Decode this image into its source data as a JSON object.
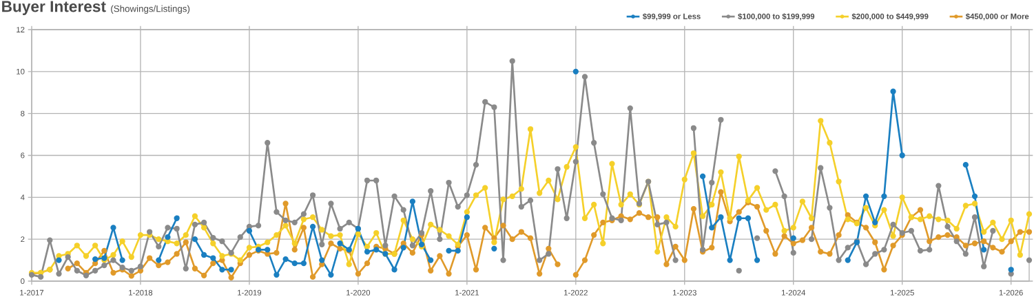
{
  "chart_data": {
    "type": "line",
    "title": "Buyer Interest",
    "subtitle": "(Showings/Listings)",
    "x": [
      "2017-01",
      "2017-02",
      "2017-03",
      "2017-04",
      "2017-05",
      "2017-06",
      "2017-07",
      "2017-08",
      "2017-09",
      "2017-10",
      "2017-11",
      "2017-12",
      "2018-01",
      "2018-02",
      "2018-03",
      "2018-04",
      "2018-05",
      "2018-06",
      "2018-07",
      "2018-08",
      "2018-09",
      "2018-10",
      "2018-11",
      "2018-12",
      "2019-01",
      "2019-02",
      "2019-03",
      "2019-04",
      "2019-05",
      "2019-06",
      "2019-07",
      "2019-08",
      "2019-09",
      "2019-10",
      "2019-11",
      "2019-12",
      "2020-01",
      "2020-02",
      "2020-03",
      "2020-04",
      "2020-05",
      "2020-06",
      "2020-07",
      "2020-08",
      "2020-09",
      "2020-10",
      "2020-11",
      "2020-12",
      "2021-01",
      "2021-02",
      "2021-03",
      "2021-04",
      "2021-05",
      "2021-06",
      "2021-07",
      "2021-08",
      "2021-09",
      "2021-10",
      "2021-11",
      "2021-12",
      "2022-01",
      "2022-02",
      "2022-03",
      "2022-04",
      "2022-05",
      "2022-06",
      "2022-07",
      "2022-08",
      "2022-09",
      "2022-10",
      "2022-11",
      "2022-12",
      "2023-01",
      "2023-02",
      "2023-03",
      "2023-04",
      "2023-05",
      "2023-06",
      "2023-07",
      "2023-08",
      "2023-09",
      "2023-10",
      "2023-11",
      "2023-12",
      "2024-01",
      "2024-02",
      "2024-03",
      "2024-04",
      "2024-05",
      "2024-06",
      "2024-07",
      "2024-08",
      "2024-09",
      "2024-10",
      "2024-11",
      "2024-12",
      "2025-01",
      "2025-02",
      "2025-03",
      "2025-04",
      "2025-05",
      "2025-06",
      "2025-07",
      "2025-08",
      "2025-09",
      "2025-10",
      "2025-11",
      "2025-12",
      "2026-01",
      "2026-02",
      "2026-03"
    ],
    "series": [
      {
        "name": "$99,999 or Less",
        "color": "#1a7fc1",
        "values": [
          null,
          null,
          null,
          1.0,
          null,
          null,
          null,
          1.05,
          1.1,
          2.55,
          1.0,
          null,
          null,
          null,
          1.0,
          2.1,
          3.0,
          null,
          2.0,
          1.25,
          1.1,
          0.55,
          0.55,
          null,
          2.4,
          1.5,
          1.5,
          0.3,
          1.05,
          0.85,
          0.85,
          2.6,
          1.0,
          0.3,
          1.8,
          1.5,
          2.5,
          1.4,
          1.5,
          1.3,
          0.55,
          1.6,
          3.8,
          1.75,
          1.0,
          null,
          1.45,
          1.45,
          3.05,
          null,
          null,
          1.55,
          null,
          null,
          null,
          null,
          null,
          null,
          null,
          null,
          10.0,
          null,
          null,
          null,
          null,
          null,
          null,
          null,
          null,
          null,
          null,
          null,
          null,
          null,
          5.0,
          2.55,
          3.05,
          1.0,
          3.0,
          3.0,
          1.0,
          null,
          null,
          null,
          2.05,
          null,
          null,
          null,
          null,
          null,
          1.0,
          1.85,
          4.05,
          2.8,
          4.05,
          9.05,
          6.0,
          null,
          null,
          null,
          null,
          null,
          null,
          5.55,
          4.05,
          1.5,
          null,
          null,
          0.55,
          null,
          null
        ]
      },
      {
        "name": "$100,000 to $199,999",
        "color": "#8a8a8a",
        "values": [
          0.3,
          0.2,
          1.95,
          0.35,
          1.15,
          0.5,
          0.27,
          0.5,
          0.75,
          1.0,
          0.65,
          0.5,
          0.7,
          2.35,
          1.65,
          2.55,
          2.5,
          0.6,
          2.7,
          2.8,
          2.07,
          1.9,
          1.35,
          2.1,
          2.6,
          2.65,
          6.6,
          3.3,
          2.9,
          2.8,
          3.2,
          4.1,
          1.75,
          3.7,
          2.5,
          2.8,
          2.5,
          4.8,
          4.8,
          1.7,
          4.05,
          3.4,
          1.7,
          2.3,
          4.3,
          2.0,
          4.7,
          3.55,
          4.1,
          5.55,
          8.55,
          8.3,
          1.0,
          10.5,
          3.55,
          3.85,
          1.0,
          1.3,
          5.35,
          3.0,
          5.7,
          9.75,
          6.6,
          4.15,
          3.0,
          2.9,
          8.25,
          3.7,
          4.75,
          2.7,
          2.8,
          1.0,
          null,
          7.3,
          1.5,
          4.7,
          7.7,
          null,
          0.5,
          null,
          2.05,
          null,
          5.25,
          4.05,
          1.35,
          null,
          2.0,
          5.4,
          3.5,
          1.0,
          1.6,
          1.9,
          0.8,
          1.3,
          1.5,
          2.7,
          2.3,
          2.4,
          1.45,
          1.5,
          4.55,
          2.6,
          1.9,
          1.3,
          3.05,
          0.7,
          2.4,
          null,
          0.35,
          null,
          1.0
        ]
      },
      {
        "name": "$200,000 to $449,999",
        "color": "#f5d02a",
        "values": [
          0.4,
          0.4,
          0.55,
          1.2,
          1.3,
          1.7,
          1.2,
          1.7,
          1.0,
          1.25,
          1.9,
          1.15,
          2.2,
          2.2,
          2.0,
          1.9,
          1.8,
          2.2,
          3.1,
          2.55,
          1.8,
          1.2,
          1.3,
          1.0,
          1.6,
          1.65,
          1.85,
          2.2,
          2.65,
          1.8,
          2.95,
          3.05,
          2.45,
          2.15,
          2.2,
          0.8,
          2.25,
          1.65,
          2.3,
          1.3,
          1.3,
          2.9,
          2.0,
          1.65,
          2.7,
          2.45,
          2.15,
          1.75,
          3.3,
          4.1,
          4.45,
          1.85,
          3.9,
          4.05,
          4.4,
          7.25,
          4.2,
          4.8,
          3.9,
          5.45,
          6.4,
          3.0,
          3.65,
          1.8,
          5.6,
          3.65,
          4.15,
          3.65,
          4.75,
          1.4,
          3.05,
          2.6,
          4.85,
          6.1,
          3.1,
          3.65,
          5.2,
          3.0,
          5.95,
          3.85,
          4.45,
          3.4,
          3.65,
          2.4,
          2.55,
          3.8,
          3.0,
          7.65,
          6.6,
          4.75,
          2.95,
          2.75,
          3.5,
          2.65,
          3.4,
          2.15,
          4.0,
          3.05,
          2.95,
          3.1,
          2.95,
          2.9,
          2.5,
          3.6,
          3.7,
          2.35,
          2.8,
          2.0,
          2.9,
          1.25,
          3.2
        ]
      },
      {
        "name": "$450,000 or More",
        "color": "#e09a2a",
        "values": [
          0.35,
          0.4,
          0.55,
          null,
          0.6,
          0.85,
          0.4,
          0.85,
          1.45,
          0.4,
          0.55,
          0.25,
          0.5,
          1.1,
          0.75,
          0.9,
          1.3,
          1.85,
          0.6,
          0.27,
          0.85,
          1.0,
          0.17,
          0.85,
          1.25,
          1.45,
          1.3,
          1.35,
          3.7,
          1.5,
          2.55,
          0.2,
          0.8,
          1.8,
          1.55,
          1.45,
          0.35,
          0.85,
          1.65,
          1.55,
          1.3,
          1.8,
          1.35,
          2.2,
          0.5,
          1.2,
          0.35,
          1.65,
          2.2,
          0.55,
          2.55,
          2.05,
          2.65,
          2.0,
          2.35,
          2.05,
          0.35,
          1.55,
          0.8,
          null,
          0.3,
          1.0,
          2.2,
          2.8,
          2.9,
          3.1,
          2.95,
          3.25,
          3.05,
          3.05,
          0.8,
          1.65,
          1.0,
          3.45,
          1.4,
          1.6,
          4.25,
          2.85,
          3.3,
          3.75,
          3.55,
          2.4,
          1.3,
          2.15,
          1.8,
          1.95,
          2.55,
          1.4,
          1.3,
          2.2,
          3.15,
          2.8,
          2.55,
          1.85,
          0.55,
          1.7,
          2.2,
          3.05,
          3.4,
          1.9,
          2.1,
          2.2,
          2.1,
          1.7,
          1.8,
          1.9,
          1.6,
          1.4,
          1.9,
          2.35,
          2.35
        ]
      }
    ],
    "xlim": [
      "2017-01",
      "2026-03"
    ],
    "xticks": [
      {
        "value": "2017-01",
        "label": "1-2017"
      },
      {
        "value": "2018-01",
        "label": "1-2018"
      },
      {
        "value": "2019-01",
        "label": "1-2019"
      },
      {
        "value": "2020-01",
        "label": "1-2020"
      },
      {
        "value": "2021-01",
        "label": "1-2021"
      },
      {
        "value": "2022-01",
        "label": "1-2022"
      },
      {
        "value": "2023-01",
        "label": "1-2023"
      },
      {
        "value": "2024-01",
        "label": "1-2024"
      },
      {
        "value": "2025-01",
        "label": "1-2025"
      },
      {
        "value": "2026-01",
        "label": "1-2026"
      }
    ],
    "ylim": [
      0,
      12
    ],
    "yticks": [
      0,
      2,
      4,
      6,
      8,
      10,
      12
    ],
    "grid": true,
    "legend": "top right",
    "marker": "circle",
    "line_style": "solid"
  }
}
